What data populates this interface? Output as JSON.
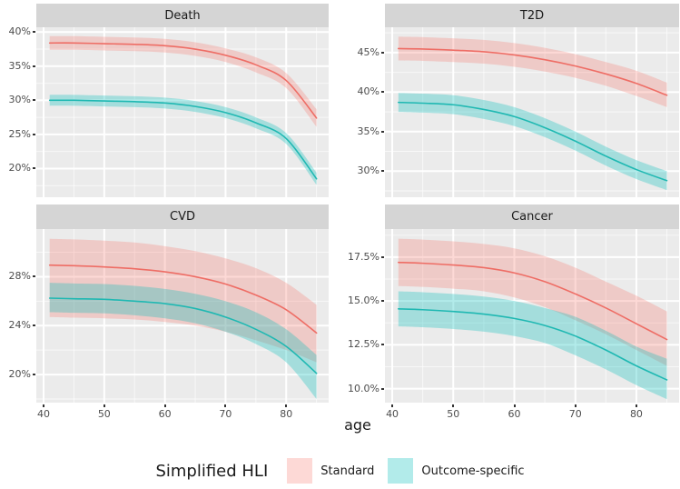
{
  "xlabel": "age",
  "legend": {
    "title": "Simplified HLI",
    "entries": [
      {
        "label": "Standard",
        "line": "#EE6D65",
        "fill": "rgba(248,118,109,0.28)"
      },
      {
        "label": "Outcome-specific",
        "line": "#1FB8B2",
        "fill": "rgba(0,188,187,0.30)"
      }
    ]
  },
  "colors": {
    "panel_bg": "#EBEBEB",
    "strip_bg": "#D5D5D5",
    "grid_major": "#FFFFFF",
    "grid_minor": "rgba(255,255,255,0.65)",
    "tick_text": "#4D4D4D",
    "text": "#1A1A1A"
  },
  "chart_data": [
    {
      "type": "line",
      "title": "Death",
      "x": [
        41,
        45,
        50,
        55,
        60,
        65,
        70,
        75,
        80,
        85
      ],
      "xlim": [
        38.8,
        87.0
      ],
      "xticks": [
        {
          "value": 40,
          "label": "40"
        },
        {
          "value": 50,
          "label": "50"
        },
        {
          "value": 60,
          "label": "60"
        },
        {
          "value": 70,
          "label": "70"
        },
        {
          "value": 80,
          "label": "80"
        }
      ],
      "x_minor": [
        45,
        55,
        65,
        75,
        85
      ],
      "ylim": [
        15.8,
        40.7
      ],
      "yticks": [
        {
          "value": 40,
          "label": "40%"
        },
        {
          "value": 35,
          "label": "35%"
        },
        {
          "value": 30,
          "label": "30%"
        },
        {
          "value": 25,
          "label": "25%"
        },
        {
          "value": 20,
          "label": "20%"
        }
      ],
      "y_minor": [
        37.5,
        32.5,
        27.5,
        22.5,
        17.5
      ],
      "series": [
        {
          "name": "Standard",
          "values": [
            38.4,
            38.4,
            38.3,
            38.2,
            38.0,
            37.5,
            36.6,
            35.2,
            32.9,
            27.4
          ],
          "upper": [
            39.4,
            39.4,
            39.3,
            39.2,
            39.0,
            38.5,
            37.6,
            36.3,
            34.0,
            28.7
          ],
          "lower": [
            37.4,
            37.4,
            37.3,
            37.2,
            37.0,
            36.5,
            35.6,
            34.1,
            31.8,
            26.1
          ]
        },
        {
          "name": "Outcome-specific",
          "values": [
            30.0,
            30.0,
            29.9,
            29.8,
            29.6,
            29.1,
            28.2,
            26.7,
            24.4,
            18.5
          ],
          "upper": [
            30.8,
            30.8,
            30.7,
            30.6,
            30.4,
            29.9,
            29.0,
            27.5,
            25.2,
            19.4
          ],
          "lower": [
            29.2,
            29.2,
            29.1,
            29.0,
            28.8,
            28.3,
            27.4,
            25.9,
            23.6,
            17.6
          ]
        }
      ]
    },
    {
      "type": "line",
      "title": "T2D",
      "x": [
        41,
        45,
        50,
        55,
        60,
        65,
        70,
        75,
        80,
        85
      ],
      "xlim": [
        38.8,
        87.0
      ],
      "xticks": [
        {
          "value": 40,
          "label": "40"
        },
        {
          "value": 50,
          "label": "50"
        },
        {
          "value": 60,
          "label": "60"
        },
        {
          "value": 70,
          "label": "70"
        },
        {
          "value": 80,
          "label": "80"
        }
      ],
      "x_minor": [
        45,
        55,
        65,
        75,
        85
      ],
      "ylim": [
        26.7,
        48.2
      ],
      "yticks": [
        {
          "value": 45,
          "label": "45%"
        },
        {
          "value": 40,
          "label": "40%"
        },
        {
          "value": 35,
          "label": "35%"
        },
        {
          "value": 30,
          "label": "30%"
        }
      ],
      "y_minor": [
        47.5,
        42.5,
        37.5,
        32.5,
        27.5
      ],
      "series": [
        {
          "name": "Standard",
          "values": [
            45.5,
            45.45,
            45.3,
            45.1,
            44.7,
            44.1,
            43.3,
            42.3,
            41.1,
            39.6
          ],
          "upper": [
            47.0,
            46.95,
            46.8,
            46.6,
            46.2,
            45.6,
            44.8,
            43.8,
            42.7,
            41.2
          ],
          "lower": [
            44.0,
            43.95,
            43.8,
            43.6,
            43.2,
            42.6,
            41.8,
            40.8,
            39.5,
            38.1
          ]
        },
        {
          "name": "Outcome-specific",
          "values": [
            38.7,
            38.6,
            38.4,
            37.8,
            36.9,
            35.5,
            33.8,
            31.9,
            30.2,
            28.8
          ],
          "upper": [
            39.9,
            39.8,
            39.6,
            39.0,
            38.1,
            36.7,
            35.0,
            33.1,
            31.4,
            30.0
          ],
          "lower": [
            37.5,
            37.4,
            37.2,
            36.6,
            35.7,
            34.3,
            32.6,
            30.7,
            29.0,
            27.6
          ]
        }
      ]
    },
    {
      "type": "line",
      "title": "CVD",
      "x": [
        41,
        45,
        50,
        55,
        60,
        65,
        70,
        75,
        80,
        85
      ],
      "xlim": [
        38.8,
        87.0
      ],
      "xticks": [
        {
          "value": 40,
          "label": "40"
        },
        {
          "value": 50,
          "label": "50"
        },
        {
          "value": 60,
          "label": "60"
        },
        {
          "value": 70,
          "label": "70"
        },
        {
          "value": 80,
          "label": "80"
        }
      ],
      "x_minor": [
        45,
        55,
        65,
        75,
        85
      ],
      "ylim": [
        17.7,
        31.9
      ],
      "yticks": [
        {
          "value": 28,
          "label": "28%"
        },
        {
          "value": 24,
          "label": "24%"
        },
        {
          "value": 20,
          "label": "20%"
        }
      ],
      "y_minor": [
        30,
        26,
        22,
        18
      ],
      "series": [
        {
          "name": "Standard",
          "values": [
            28.95,
            28.9,
            28.8,
            28.65,
            28.4,
            28.0,
            27.4,
            26.5,
            25.3,
            23.4
          ],
          "upper": [
            31.1,
            31.05,
            30.95,
            30.8,
            30.5,
            30.1,
            29.5,
            28.7,
            27.5,
            25.7
          ],
          "lower": [
            24.7,
            24.65,
            24.6,
            24.5,
            24.3,
            24.0,
            23.5,
            22.8,
            22.0,
            21.0
          ]
        },
        {
          "name": "Outcome-specific",
          "values": [
            26.25,
            26.2,
            26.15,
            26.0,
            25.8,
            25.4,
            24.7,
            23.7,
            22.3,
            20.1
          ],
          "upper": [
            27.5,
            27.45,
            27.4,
            27.25,
            27.0,
            26.6,
            26.0,
            25.1,
            23.7,
            21.6
          ],
          "lower": [
            25.1,
            25.05,
            25.0,
            24.85,
            24.6,
            24.2,
            23.5,
            22.5,
            21.0,
            18.0
          ]
        }
      ]
    },
    {
      "type": "line",
      "title": "Cancer",
      "x": [
        41,
        45,
        50,
        55,
        60,
        65,
        70,
        75,
        80,
        85
      ],
      "xlim": [
        38.8,
        87.0
      ],
      "xticks": [
        {
          "value": 40,
          "label": "40"
        },
        {
          "value": 50,
          "label": "50"
        },
        {
          "value": 60,
          "label": "60"
        },
        {
          "value": 70,
          "label": "70"
        },
        {
          "value": 80,
          "label": "80"
        }
      ],
      "x_minor": [
        45,
        55,
        65,
        75,
        85
      ],
      "ylim": [
        9.2,
        19.1
      ],
      "yticks": [
        {
          "value": 17.5,
          "label": "17.5%"
        },
        {
          "value": 15,
          "label": "15.0%"
        },
        {
          "value": 12.5,
          "label": "12.5%"
        },
        {
          "value": 10,
          "label": "10.0%"
        }
      ],
      "y_minor": [
        18.75,
        16.25,
        13.75,
        11.25
      ],
      "series": [
        {
          "name": "Standard",
          "values": [
            17.2,
            17.15,
            17.05,
            16.9,
            16.6,
            16.1,
            15.4,
            14.6,
            13.7,
            12.8
          ],
          "upper": [
            18.55,
            18.5,
            18.4,
            18.25,
            18.0,
            17.55,
            16.9,
            16.1,
            15.3,
            14.4
          ],
          "lower": [
            15.85,
            15.8,
            15.7,
            15.55,
            15.2,
            14.65,
            13.9,
            13.1,
            12.2,
            11.3
          ]
        },
        {
          "name": "Outcome-specific",
          "values": [
            14.55,
            14.5,
            14.4,
            14.25,
            14.0,
            13.6,
            13.0,
            12.2,
            11.3,
            10.5
          ],
          "upper": [
            15.55,
            15.5,
            15.4,
            15.25,
            15.0,
            14.6,
            14.1,
            13.3,
            12.4,
            11.7
          ],
          "lower": [
            13.55,
            13.5,
            13.4,
            13.25,
            13.0,
            12.6,
            11.9,
            11.1,
            10.2,
            9.4
          ]
        }
      ]
    }
  ]
}
